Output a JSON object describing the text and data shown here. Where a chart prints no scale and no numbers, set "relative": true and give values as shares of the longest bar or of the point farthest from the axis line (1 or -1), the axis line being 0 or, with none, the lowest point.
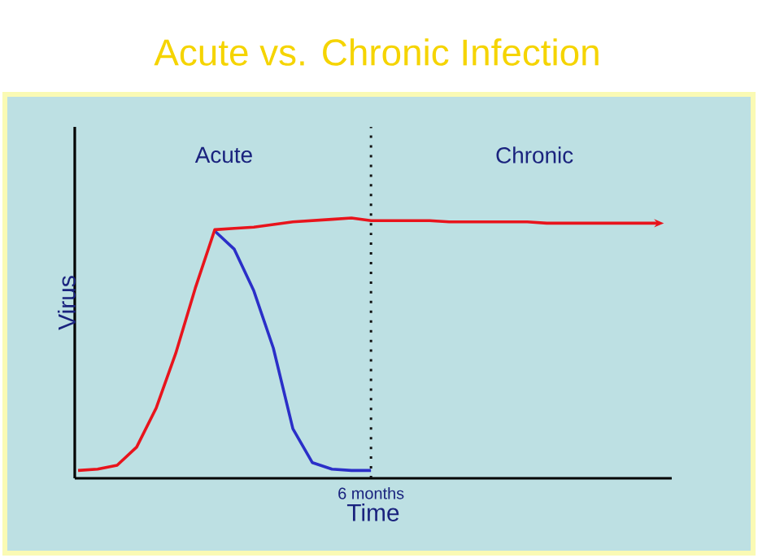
{
  "chart_data": {
    "type": "line",
    "title": "Acute vs. Chronic Infection",
    "xlabel": "Time",
    "ylabel": "Virus",
    "relative": true,
    "categories": [
      null,
      null,
      null,
      null,
      null,
      null,
      null,
      null,
      null,
      null,
      null,
      null,
      null,
      null,
      null,
      null,
      null,
      null,
      null,
      null,
      null,
      null,
      null,
      null,
      null,
      null,
      null,
      null,
      null,
      null,
      null
    ],
    "annotations": [
      "Acute",
      "Chronic",
      "6 months"
    ],
    "series": [
      {
        "color": "#2b2fc8",
        "values": [
          null,
          null,
          null,
          null,
          null,
          null,
          null,
          0.95,
          0.88,
          0.72,
          0.5,
          0.19,
          0.06,
          0.035,
          0.03,
          0.03,
          null,
          null,
          null,
          null,
          null,
          null,
          null,
          null,
          null,
          null,
          null,
          null,
          null,
          null,
          null
        ]
      },
      {
        "color": "#e8141c",
        "values": [
          0.03,
          0.035,
          0.05,
          0.12,
          0.27,
          0.48,
          0.73,
          0.955,
          0.96,
          0.965,
          0.975,
          0.985,
          0.99,
          0.995,
          1.0,
          0.99,
          0.99,
          0.99,
          0.99,
          0.985,
          0.985,
          0.985,
          0.985,
          0.985,
          0.98,
          0.98,
          0.98,
          0.98,
          0.98,
          0.98,
          0.98
        ]
      }
    ],
    "marker": "none",
    "line_style": "solid"
  }
}
